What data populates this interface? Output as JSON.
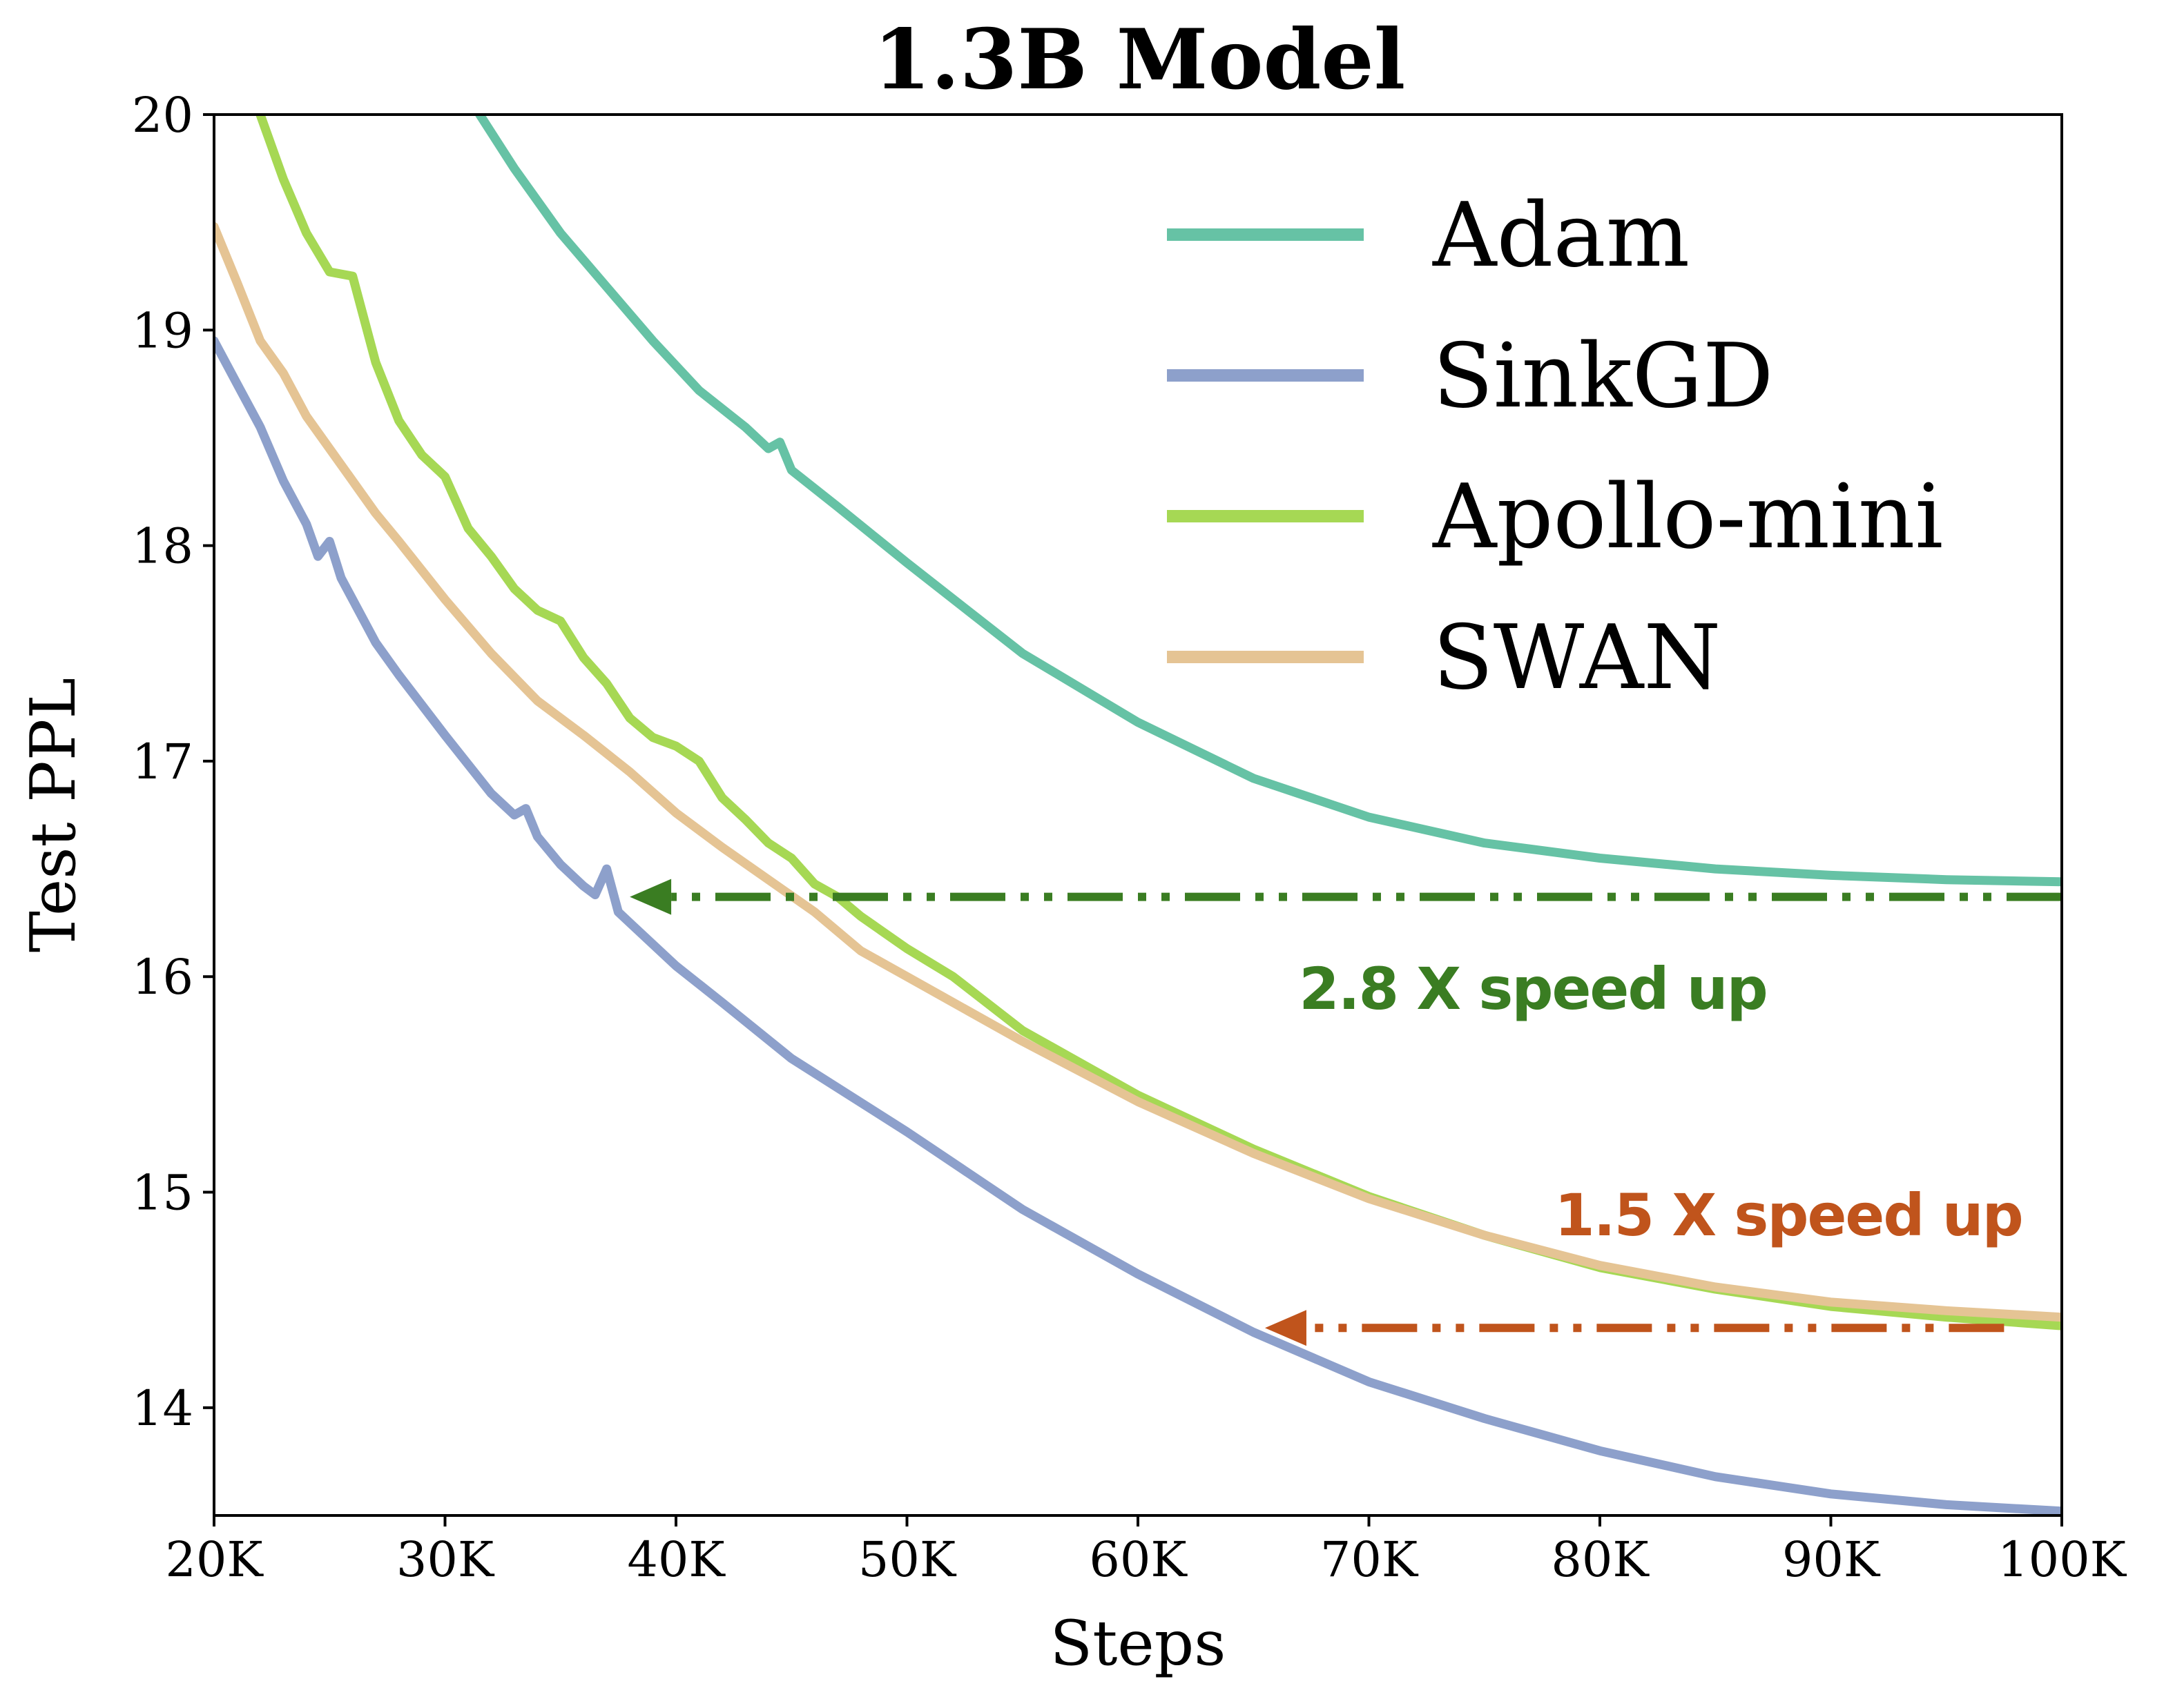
{
  "chart_data": {
    "type": "line",
    "title": "1.3B Model",
    "xlabel": "Steps",
    "ylabel": "Test PPL",
    "xlim": [
      20000,
      100000
    ],
    "ylim": [
      13.5,
      20
    ],
    "xticks": [
      20000,
      30000,
      40000,
      50000,
      60000,
      70000,
      80000,
      90000,
      100000
    ],
    "xtick_labels": [
      "20K",
      "30K",
      "40K",
      "50K",
      "60K",
      "70K",
      "80K",
      "90K",
      "100K"
    ],
    "yticks": [
      14,
      15,
      16,
      17,
      18,
      19,
      20
    ],
    "ytick_labels": [
      "14",
      "15",
      "16",
      "17",
      "18",
      "19",
      "20"
    ],
    "grid": false,
    "legend_position": "top-right",
    "series": [
      {
        "name": "Adam",
        "color": "#66c2a5",
        "x": [
          31500,
          33000,
          35000,
          37000,
          39000,
          41000,
          43000,
          44000,
          44500,
          45000,
          47000,
          50000,
          55000,
          60000,
          65000,
          70000,
          75000,
          80000,
          85000,
          90000,
          95000,
          100000
        ],
        "y": [
          20.0,
          19.75,
          19.45,
          19.2,
          18.95,
          18.72,
          18.55,
          18.45,
          18.48,
          18.35,
          18.18,
          17.92,
          17.5,
          17.18,
          16.92,
          16.74,
          16.62,
          16.55,
          16.5,
          16.47,
          16.45,
          16.44
        ]
      },
      {
        "name": "SinkGD",
        "color": "#8da0cb",
        "x": [
          20000,
          21000,
          22000,
          23000,
          24000,
          24500,
          25000,
          25500,
          26000,
          27000,
          28000,
          30000,
          32000,
          33000,
          33500,
          34000,
          35000,
          36000,
          36500,
          37000,
          37500,
          38000,
          40000,
          42000,
          45000,
          50000,
          55000,
          60000,
          65000,
          70000,
          75000,
          80000,
          85000,
          90000,
          95000,
          100000
        ],
        "y": [
          18.95,
          18.75,
          18.55,
          18.3,
          18.1,
          17.95,
          18.02,
          17.85,
          17.75,
          17.55,
          17.4,
          17.12,
          16.85,
          16.75,
          16.78,
          16.65,
          16.52,
          16.42,
          16.38,
          16.5,
          16.3,
          16.25,
          16.05,
          15.88,
          15.62,
          15.28,
          14.92,
          14.62,
          14.35,
          14.12,
          13.95,
          13.8,
          13.68,
          13.6,
          13.55,
          13.52
        ]
      },
      {
        "name": "Apollo-mini",
        "color": "#a6d854",
        "x": [
          22000,
          23000,
          24000,
          25000,
          26000,
          27000,
          28000,
          29000,
          30000,
          31000,
          32000,
          33000,
          34000,
          35000,
          36000,
          37000,
          38000,
          39000,
          40000,
          41000,
          42000,
          43000,
          44000,
          45000,
          46000,
          47000,
          48000,
          50000,
          52000,
          55000,
          60000,
          65000,
          70000,
          75000,
          80000,
          85000,
          90000,
          95000,
          100000
        ],
        "y": [
          20.0,
          19.7,
          19.45,
          19.27,
          19.25,
          18.85,
          18.58,
          18.42,
          18.32,
          18.08,
          17.95,
          17.8,
          17.7,
          17.65,
          17.48,
          17.36,
          17.2,
          17.11,
          17.07,
          17.0,
          16.83,
          16.73,
          16.62,
          16.55,
          16.43,
          16.37,
          16.28,
          16.13,
          16.0,
          15.75,
          15.45,
          15.2,
          14.98,
          14.8,
          14.65,
          14.55,
          14.47,
          14.42,
          14.38
        ]
      },
      {
        "name": "SWAN",
        "color": "#e5c494",
        "x": [
          20000,
          21000,
          22000,
          23000,
          24000,
          25000,
          26000,
          27000,
          28000,
          30000,
          32000,
          34000,
          36000,
          38000,
          40000,
          42000,
          44000,
          46000,
          48000,
          50000,
          52000,
          55000,
          60000,
          65000,
          70000,
          75000,
          80000,
          85000,
          90000,
          95000,
          100000
        ],
        "y": [
          19.48,
          19.22,
          18.95,
          18.8,
          18.6,
          18.45,
          18.3,
          18.15,
          18.02,
          17.75,
          17.5,
          17.28,
          17.12,
          16.95,
          16.76,
          16.6,
          16.45,
          16.3,
          16.12,
          16.0,
          15.88,
          15.7,
          15.42,
          15.18,
          14.97,
          14.8,
          14.66,
          14.56,
          14.49,
          14.45,
          14.42
        ]
      }
    ],
    "annotations": [
      {
        "text": "2.8 X speed up",
        "color": "#3a7d22",
        "arrow_from_x": 100000,
        "arrow_to_x": 38000,
        "arrow_y": 16.37
      },
      {
        "text": "1.5 X speed up",
        "color": "#c0541c",
        "arrow_from_x": 97500,
        "arrow_to_x": 65500,
        "arrow_y": 14.37
      }
    ]
  }
}
